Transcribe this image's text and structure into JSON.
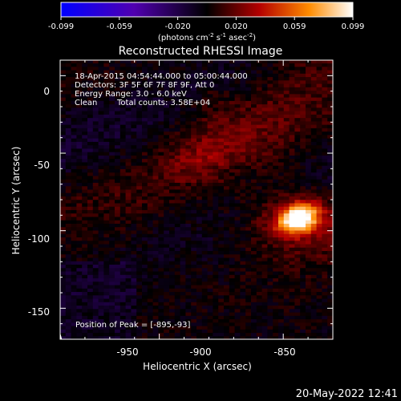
{
  "colorbar": {
    "tick_labels": [
      "-0.099",
      "-0.059",
      "-0.020",
      "0.020",
      "0.059",
      "0.099"
    ],
    "range": [
      -0.099,
      0.099
    ],
    "unit_label": "(photons cm",
    "unit_sup1": "-2",
    "unit_mid": " s",
    "unit_sup2": "-1",
    "unit_end": " asec",
    "unit_sup3": "-2",
    "unit_close": ")"
  },
  "chart_data": {
    "type": "heatmap",
    "title": "Reconstructed RHESSI Image",
    "xlabel": "Heliocentric X (arcsec)",
    "ylabel": "Heliocentric Y (arcsec)",
    "xlim": [
      -990,
      -880
    ],
    "ylim": [
      -170,
      10
    ],
    "xticks": [
      -950,
      -900,
      -850
    ],
    "xtick_labels": [
      "-950",
      "-900",
      "-850"
    ],
    "yticks": [
      0,
      -50,
      -100,
      -150
    ],
    "ytick_labels": [
      "0",
      "-50",
      "-100",
      "-150"
    ],
    "peak": {
      "x": -895,
      "y": -93
    },
    "annotations": {
      "time": "18-Apr-2015 04:54:44.000 to 05:00:44.000",
      "detectors": "Detectors: 3F 5F 6F 7F 8F 9F, Att 0",
      "energy": "Energy Range: 3.0 - 6.0 keV",
      "method": "Clean",
      "counts": "Total counts: 3.58E+04",
      "peak_label": "Position of Peak = [-895,-93]"
    },
    "colormap": "blue-purple-black-red-yellow-white",
    "colors": {
      "background": "#000000",
      "text": "#ffffff",
      "limb": "#ffffff"
    }
  },
  "footer": {
    "date": "20-May-2022 12:41"
  }
}
